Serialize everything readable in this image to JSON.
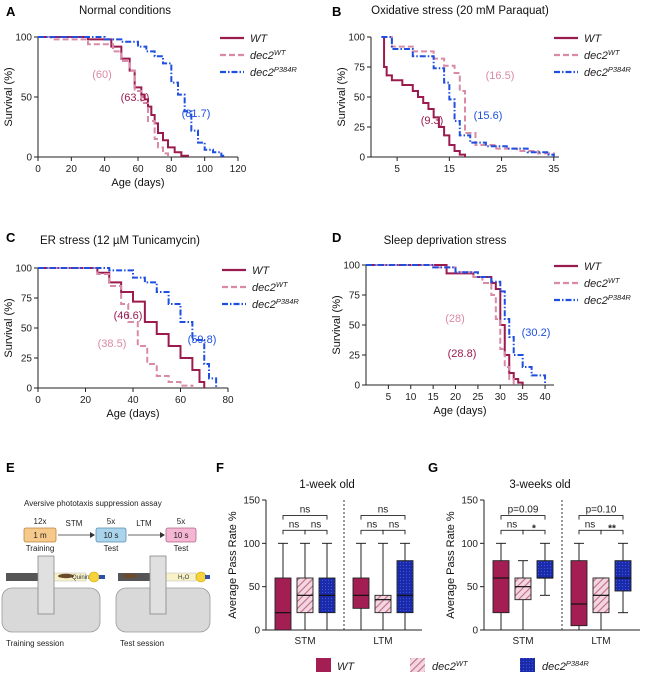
{
  "colors": {
    "wt": "#9c1b4f",
    "dec2wt": "#d98aa6",
    "p384r": "#1f4fe0",
    "box_wt": "#a31e53",
    "box_dec2": "#d390a8",
    "box_p384r": "#1a2aa8"
  },
  "legend": {
    "wt": "WT",
    "dec2": "dec2",
    "dec2_sup": "WT",
    "p384r": "dec2",
    "p384r_sup": "P384R"
  },
  "panels": {
    "A": {
      "label": "A",
      "title": "Normal conditions"
    },
    "B": {
      "label": "B",
      "title": "Oxidative stress (20 mM Paraquat)"
    },
    "C": {
      "label": "C",
      "title": "ER stress (12 µM Tunicamycin)"
    },
    "D": {
      "label": "D",
      "title": "Sleep deprivation stress"
    },
    "E": {
      "label": "E",
      "title": "Aversive phototaxis suppression assay"
    },
    "F": {
      "label": "F",
      "title": "1-week old"
    },
    "G": {
      "label": "G",
      "title": "3-weeks old"
    }
  },
  "assay": {
    "step1_count": "12x",
    "step1_box": "1 m",
    "step1_label": "Training",
    "arrow1": "STM",
    "step2_count": "5x",
    "step2_box": "10 s",
    "step2_label": "Test",
    "arrow2": "LTM",
    "step3_count": "5x",
    "step3_box": "10 s",
    "step3_label": "Test",
    "quinine": "Quinine",
    "h2o": "H₂O",
    "session1": "Training session",
    "session2": "Test session"
  },
  "chart_data": [
    {
      "panel": "A",
      "type": "line",
      "title": "Normal conditions",
      "xlabel": "Age (days)",
      "ylabel": "Survival (%)",
      "xlim": [
        0,
        120
      ],
      "ylim": [
        0,
        100
      ],
      "xticks": [
        0,
        20,
        40,
        60,
        80,
        100,
        120
      ],
      "yticks": [
        0,
        50,
        100
      ],
      "series": [
        {
          "name": "WT",
          "color_key": "wt",
          "dash": "solid",
          "median_label": "(63.3)",
          "x": [
            0,
            30,
            44,
            50,
            55,
            58,
            62,
            64,
            66,
            68,
            70,
            72,
            75,
            78,
            82,
            86,
            90
          ],
          "y": [
            100,
            98,
            92,
            82,
            72,
            58,
            52,
            48,
            42,
            35,
            28,
            20,
            14,
            8,
            4,
            1,
            0
          ]
        },
        {
          "name": "dec2WT",
          "color_key": "dec2wt",
          "dash": "dash",
          "median_label": "(60)",
          "x": [
            0,
            8,
            30,
            45,
            50,
            55,
            58,
            62,
            66,
            70,
            72,
            75,
            78
          ],
          "y": [
            100,
            98,
            94,
            88,
            80,
            72,
            55,
            45,
            30,
            15,
            8,
            3,
            0
          ]
        },
        {
          "name": "dec2P384R",
          "color_key": "p384r",
          "dash": "dashdot",
          "median_label": "(81.7)",
          "x": [
            0,
            40,
            50,
            60,
            65,
            70,
            75,
            80,
            84,
            88,
            92,
            96,
            100,
            105,
            110,
            112
          ],
          "y": [
            100,
            98,
            96,
            92,
            88,
            84,
            78,
            62,
            52,
            38,
            22,
            12,
            6,
            4,
            1,
            0
          ]
        }
      ],
      "annotations": [
        "(60)",
        "(63.3)",
        "(81.7)"
      ]
    },
    {
      "panel": "B",
      "type": "line",
      "title": "Oxidative stress (20 mM Paraquat)",
      "xlabel": "",
      "ylabel": "Survival (%)",
      "xlim": [
        0,
        36
      ],
      "ylim": [
        0,
        100
      ],
      "xticks": [
        5,
        15,
        25,
        35
      ],
      "yticks": [
        0,
        25,
        50,
        75,
        100
      ],
      "series": [
        {
          "name": "WT",
          "color_key": "wt",
          "dash": "solid",
          "median_label": "(9.3)",
          "x": [
            2,
            2.5,
            3,
            4,
            6,
            8,
            9,
            10,
            11,
            12,
            13,
            14,
            15,
            16,
            17,
            18
          ],
          "y": [
            100,
            75,
            68,
            64,
            60,
            55,
            50,
            45,
            40,
            33,
            25,
            18,
            10,
            5,
            2,
            0
          ]
        },
        {
          "name": "dec2WT",
          "color_key": "dec2wt",
          "dash": "dash",
          "median_label": "(16.5)",
          "x": [
            2,
            4,
            8,
            12,
            14,
            16,
            17,
            18,
            20,
            24,
            28,
            32,
            35
          ],
          "y": [
            100,
            92,
            88,
            82,
            76,
            70,
            55,
            20,
            10,
            7,
            5,
            3,
            0
          ]
        },
        {
          "name": "dec2P384R",
          "color_key": "p384r",
          "dash": "dashdot",
          "median_label": "(15.6)",
          "x": [
            2,
            4,
            8,
            12,
            14,
            15,
            16,
            17,
            19,
            22,
            26,
            30,
            34,
            35
          ],
          "y": [
            100,
            90,
            84,
            74,
            62,
            48,
            30,
            18,
            12,
            9,
            7,
            4,
            2,
            0
          ]
        }
      ],
      "annotations": [
        "(16.5)",
        "(15.6)",
        "(9.3)"
      ]
    },
    {
      "panel": "C",
      "type": "line",
      "title": "ER stress (12 µM Tunicamycin)",
      "xlabel": "Age (days)",
      "ylabel": "Survival (%)",
      "xlim": [
        0,
        80
      ],
      "ylim": [
        0,
        100
      ],
      "xticks": [
        0,
        20,
        40,
        60,
        80
      ],
      "yticks": [
        0,
        25,
        50,
        75,
        100
      ],
      "series": [
        {
          "name": "WT",
          "color_key": "wt",
          "dash": "solid",
          "median_label": "(46.6)",
          "x": [
            0,
            25,
            30,
            35,
            40,
            45,
            50,
            55,
            60,
            65,
            68,
            70
          ],
          "y": [
            100,
            96,
            88,
            80,
            72,
            55,
            45,
            35,
            25,
            15,
            5,
            0
          ]
        },
        {
          "name": "dec2WT",
          "color_key": "dec2wt",
          "dash": "dash",
          "median_label": "(38.5)",
          "x": [
            0,
            25,
            30,
            35,
            38,
            42,
            46,
            50,
            55,
            60,
            65
          ],
          "y": [
            100,
            95,
            85,
            70,
            55,
            35,
            20,
            10,
            5,
            2,
            0
          ]
        },
        {
          "name": "dec2P384R",
          "color_key": "p384r",
          "dash": "dashdot",
          "median_label": "(59.8)",
          "x": [
            0,
            30,
            40,
            45,
            50,
            55,
            60,
            65,
            70,
            72,
            75
          ],
          "y": [
            100,
            98,
            92,
            88,
            80,
            70,
            55,
            40,
            20,
            8,
            0
          ]
        }
      ],
      "annotations": [
        "(46.6)",
        "(38.5)",
        "(59.8)"
      ]
    },
    {
      "panel": "D",
      "type": "line",
      "title": "Sleep deprivation stress",
      "xlabel": "Age (days)",
      "ylabel": "Survival (%)",
      "xlim": [
        0,
        42
      ],
      "ylim": [
        0,
        100
      ],
      "xticks": [
        5,
        10,
        15,
        20,
        25,
        30,
        35,
        40
      ],
      "yticks": [
        0,
        25,
        50,
        75,
        100
      ],
      "series": [
        {
          "name": "WT",
          "color_key": "wt",
          "dash": "solid",
          "median_label": "(28.8)",
          "x": [
            0,
            17,
            18,
            24,
            28,
            29,
            30,
            31,
            32,
            33,
            34,
            35
          ],
          "y": [
            100,
            100,
            93,
            90,
            85,
            80,
            50,
            25,
            10,
            5,
            2,
            0
          ]
        },
        {
          "name": "dec2WT",
          "color_key": "dec2wt",
          "dash": "dash",
          "median_label": "(28)",
          "x": [
            0,
            15,
            20,
            24,
            26,
            28,
            29,
            30,
            31,
            32,
            33
          ],
          "y": [
            100,
            98,
            94,
            90,
            85,
            75,
            55,
            30,
            15,
            5,
            0
          ]
        },
        {
          "name": "dec2P384R",
          "color_key": "p384r",
          "dash": "dashdot",
          "median_label": "(30.2)",
          "x": [
            0,
            15,
            20,
            25,
            28,
            30,
            31,
            32,
            33,
            35,
            37,
            40
          ],
          "y": [
            100,
            98,
            94,
            90,
            86,
            78,
            55,
            40,
            25,
            15,
            8,
            0
          ]
        }
      ],
      "annotations": [
        "(28)",
        "(30.2)",
        "(28.8)"
      ]
    },
    {
      "panel": "F",
      "type": "box",
      "title": "1-week old",
      "ylabel": "Average Pass Rate %",
      "ylim": [
        0,
        150
      ],
      "yticks": [
        0,
        50,
        100,
        150
      ],
      "groups": [
        "STM",
        "LTM"
      ],
      "series": [
        {
          "name": "WT",
          "color_key": "box_wt",
          "pattern": "solid",
          "boxes": [
            {
              "min": 0,
              "q1": 0,
              "median": 20,
              "q3": 60,
              "max": 100
            },
            {
              "min": 0,
              "q1": 25,
              "median": 40,
              "q3": 60,
              "max": 100
            }
          ]
        },
        {
          "name": "dec2WT",
          "color_key": "box_dec2",
          "pattern": "hatch",
          "boxes": [
            {
              "min": 0,
              "q1": 20,
              "median": 40,
              "q3": 60,
              "max": 100
            },
            {
              "min": 0,
              "q1": 20,
              "median": 35,
              "q3": 40,
              "max": 100
            }
          ]
        },
        {
          "name": "dec2P384R",
          "color_key": "box_p384r",
          "pattern": "dots",
          "boxes": [
            {
              "min": 0,
              "q1": 20,
              "median": 40,
              "q3": 60,
              "max": 100
            },
            {
              "min": 0,
              "q1": 20,
              "median": 40,
              "q3": 80,
              "max": 100
            }
          ]
        }
      ],
      "comparisons": [
        {
          "group": "STM",
          "from": 0,
          "to": 2,
          "label": "ns",
          "level": 2
        },
        {
          "group": "STM",
          "from": 0,
          "to": 1,
          "label": "ns",
          "level": 1
        },
        {
          "group": "STM",
          "from": 1,
          "to": 2,
          "label": "ns",
          "level": 1
        },
        {
          "group": "LTM",
          "from": 0,
          "to": 2,
          "label": "ns",
          "level": 2
        },
        {
          "group": "LTM",
          "from": 0,
          "to": 1,
          "label": "ns",
          "level": 1
        },
        {
          "group": "LTM",
          "from": 1,
          "to": 2,
          "label": "ns",
          "level": 1
        }
      ]
    },
    {
      "panel": "G",
      "type": "box",
      "title": "3-weeks old",
      "ylabel": "Average Pass Rate %",
      "ylim": [
        0,
        150
      ],
      "yticks": [
        0,
        50,
        100,
        150
      ],
      "groups": [
        "STM",
        "LTM"
      ],
      "series": [
        {
          "name": "WT",
          "color_key": "box_wt",
          "pattern": "solid",
          "boxes": [
            {
              "min": 0,
              "q1": 20,
              "median": 60,
              "q3": 80,
              "max": 100
            },
            {
              "min": 0,
              "q1": 5,
              "median": 30,
              "q3": 80,
              "max": 100
            }
          ]
        },
        {
          "name": "dec2WT",
          "color_key": "box_dec2",
          "pattern": "hatch",
          "boxes": [
            {
              "min": 0,
              "q1": 35,
              "median": 50,
              "q3": 60,
              "max": 80
            },
            {
              "min": 0,
              "q1": 20,
              "median": 40,
              "q3": 60,
              "max": 60
            }
          ]
        },
        {
          "name": "dec2P384R",
          "color_key": "box_p384r",
          "pattern": "dots",
          "boxes": [
            {
              "min": 40,
              "q1": 60,
              "median": 60,
              "q3": 80,
              "max": 100
            },
            {
              "min": 20,
              "q1": 45,
              "median": 60,
              "q3": 80,
              "max": 100
            }
          ]
        }
      ],
      "comparisons": [
        {
          "group": "STM",
          "from": 0,
          "to": 2,
          "label": "p=0.09",
          "level": 2
        },
        {
          "group": "STM",
          "from": 0,
          "to": 1,
          "label": "ns",
          "level": 1
        },
        {
          "group": "STM",
          "from": 1,
          "to": 2,
          "label": "*",
          "level": 1
        },
        {
          "group": "LTM",
          "from": 0,
          "to": 2,
          "label": "p=0.10",
          "level": 2
        },
        {
          "group": "LTM",
          "from": 0,
          "to": 1,
          "label": "ns",
          "level": 1
        },
        {
          "group": "LTM",
          "from": 1,
          "to": 2,
          "label": "**",
          "level": 1
        }
      ]
    }
  ]
}
